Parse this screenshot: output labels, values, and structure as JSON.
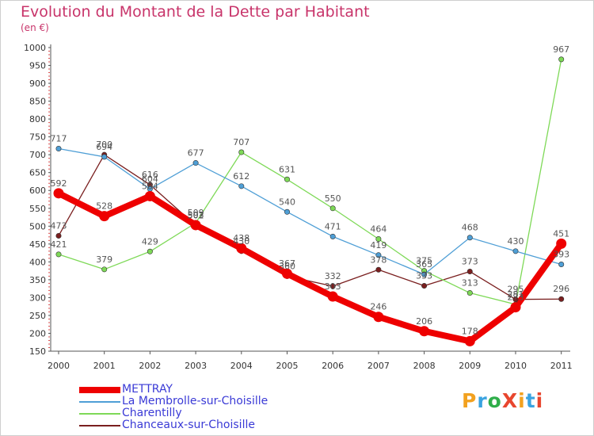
{
  "title": "Evolution du Montant de la Dette par Habitant",
  "unit": "(en €)",
  "logo": {
    "text": "ProXiti",
    "letters": [
      "P",
      "r",
      "o",
      "X",
      "i",
      "t",
      "i"
    ],
    "colors": [
      "#f2a11f",
      "#3aa3e0",
      "#2fae4a",
      "#e8462e",
      "#f2a11f",
      "#3aa3e0",
      "#e8462e"
    ]
  },
  "chart_data": {
    "type": "line",
    "title": "Evolution du Montant de la Dette par Habitant",
    "ylabel": "(en €)",
    "xlabel": "",
    "x": [
      "2000",
      "2001",
      "2002",
      "2003",
      "2004",
      "2005",
      "2006",
      "2007",
      "2008",
      "2009",
      "2010",
      "2011"
    ],
    "ylim": [
      150,
      1000
    ],
    "yticks": [
      150,
      200,
      250,
      300,
      350,
      400,
      450,
      500,
      550,
      600,
      650,
      700,
      750,
      800,
      850,
      900,
      950,
      1000
    ],
    "grid": false,
    "legend_position": "bottom-left",
    "series": [
      {
        "name": "METTRAY",
        "color": "#ee0000",
        "values": [
          592,
          528,
          584,
          503,
          438,
          367,
          303,
          246,
          206,
          178,
          273,
          451
        ],
        "labels": [
          "592",
          "528",
          "584",
          "503",
          "438",
          "367",
          "303",
          "246",
          "206",
          "178",
          "273",
          "451"
        ]
      },
      {
        "name": "La Membrolle-sur-Choisille",
        "color": "#4f9fd6",
        "values": [
          717,
          694,
          604,
          677,
          612,
          540,
          471,
          419,
          365,
          468,
          430,
          393
        ],
        "labels": [
          "717",
          "694",
          "604",
          "677",
          "612",
          "540",
          "471",
          "419",
          "365",
          "468",
          "430",
          "393"
        ]
      },
      {
        "name": "Charentilly",
        "color": "#7ed957",
        "values": [
          421,
          379,
          429,
          509,
          707,
          631,
          550,
          464,
          375,
          313,
          281,
          967
        ],
        "labels": [
          "421",
          "379",
          "429",
          "509",
          "707",
          "631",
          "550",
          "464",
          "375",
          "313",
          "281",
          "967"
        ]
      },
      {
        "name": "Chanceaux-sur-Choisille",
        "color": "#7a1f1f",
        "values": [
          473,
          700,
          616,
          502,
          430,
          360,
          332,
          378,
          333,
          373,
          295,
          296
        ],
        "labels": [
          "473",
          "700",
          "616",
          "502",
          "430",
          "360",
          "332",
          "378",
          "333",
          "373",
          "295",
          "296"
        ]
      }
    ]
  }
}
